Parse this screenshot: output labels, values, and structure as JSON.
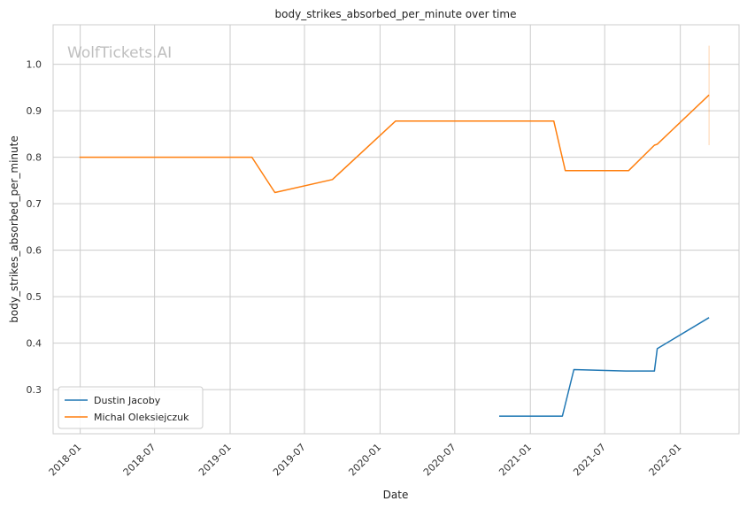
{
  "chart_data": {
    "type": "line",
    "title": "body_strikes_absorbed_per_minute over time",
    "xlabel": "Date",
    "ylabel": "body_strikes_absorbed_per_minute",
    "watermark": "WolfTickets.AI",
    "grid": true,
    "legend_position": "lower-left",
    "xlim": [
      "2017-10-27",
      "2022-05-24"
    ],
    "ylim": [
      0.205,
      1.085
    ],
    "x_ticks": [
      "2018-01",
      "2018-07",
      "2019-01",
      "2019-07",
      "2020-01",
      "2020-07",
      "2021-01",
      "2021-07",
      "2022-01"
    ],
    "y_ticks": [
      0.3,
      0.4,
      0.5,
      0.6,
      0.7,
      0.8,
      0.9,
      1.0
    ],
    "y_tick_labels": [
      "0.3",
      "0.4",
      "0.5",
      "0.6",
      "0.7",
      "0.8",
      "0.9",
      "1.0"
    ],
    "series": [
      {
        "name": "Dustin Jacoby",
        "color": "#1f77b4",
        "points": [
          [
            "2020-10-17",
            0.243
          ],
          [
            "2021-03-20",
            0.243
          ],
          [
            "2021-04-17",
            0.343
          ],
          [
            "2021-08-21",
            0.34
          ],
          [
            "2021-10-30",
            0.34
          ],
          [
            "2021-11-06",
            0.388
          ],
          [
            "2022-03-12",
            0.455
          ]
        ]
      },
      {
        "name": "Michal Oleksiejczuk",
        "color": "#ff7f0e",
        "points": [
          [
            "2017-12-30",
            0.8
          ],
          [
            "2019-02-23",
            0.8
          ],
          [
            "2019-04-20",
            0.724
          ],
          [
            "2019-09-07",
            0.752
          ],
          [
            "2020-02-08",
            0.878
          ],
          [
            "2021-02-27",
            0.878
          ],
          [
            "2021-03-27",
            0.771
          ],
          [
            "2021-08-28",
            0.771
          ],
          [
            "2021-10-30",
            0.826
          ],
          [
            "2021-11-06",
            0.828
          ],
          [
            "2022-03-12",
            0.934
          ]
        ],
        "error_bar": {
          "x": "2022-03-12",
          "low": 0.826,
          "high": 1.04
        }
      }
    ]
  }
}
